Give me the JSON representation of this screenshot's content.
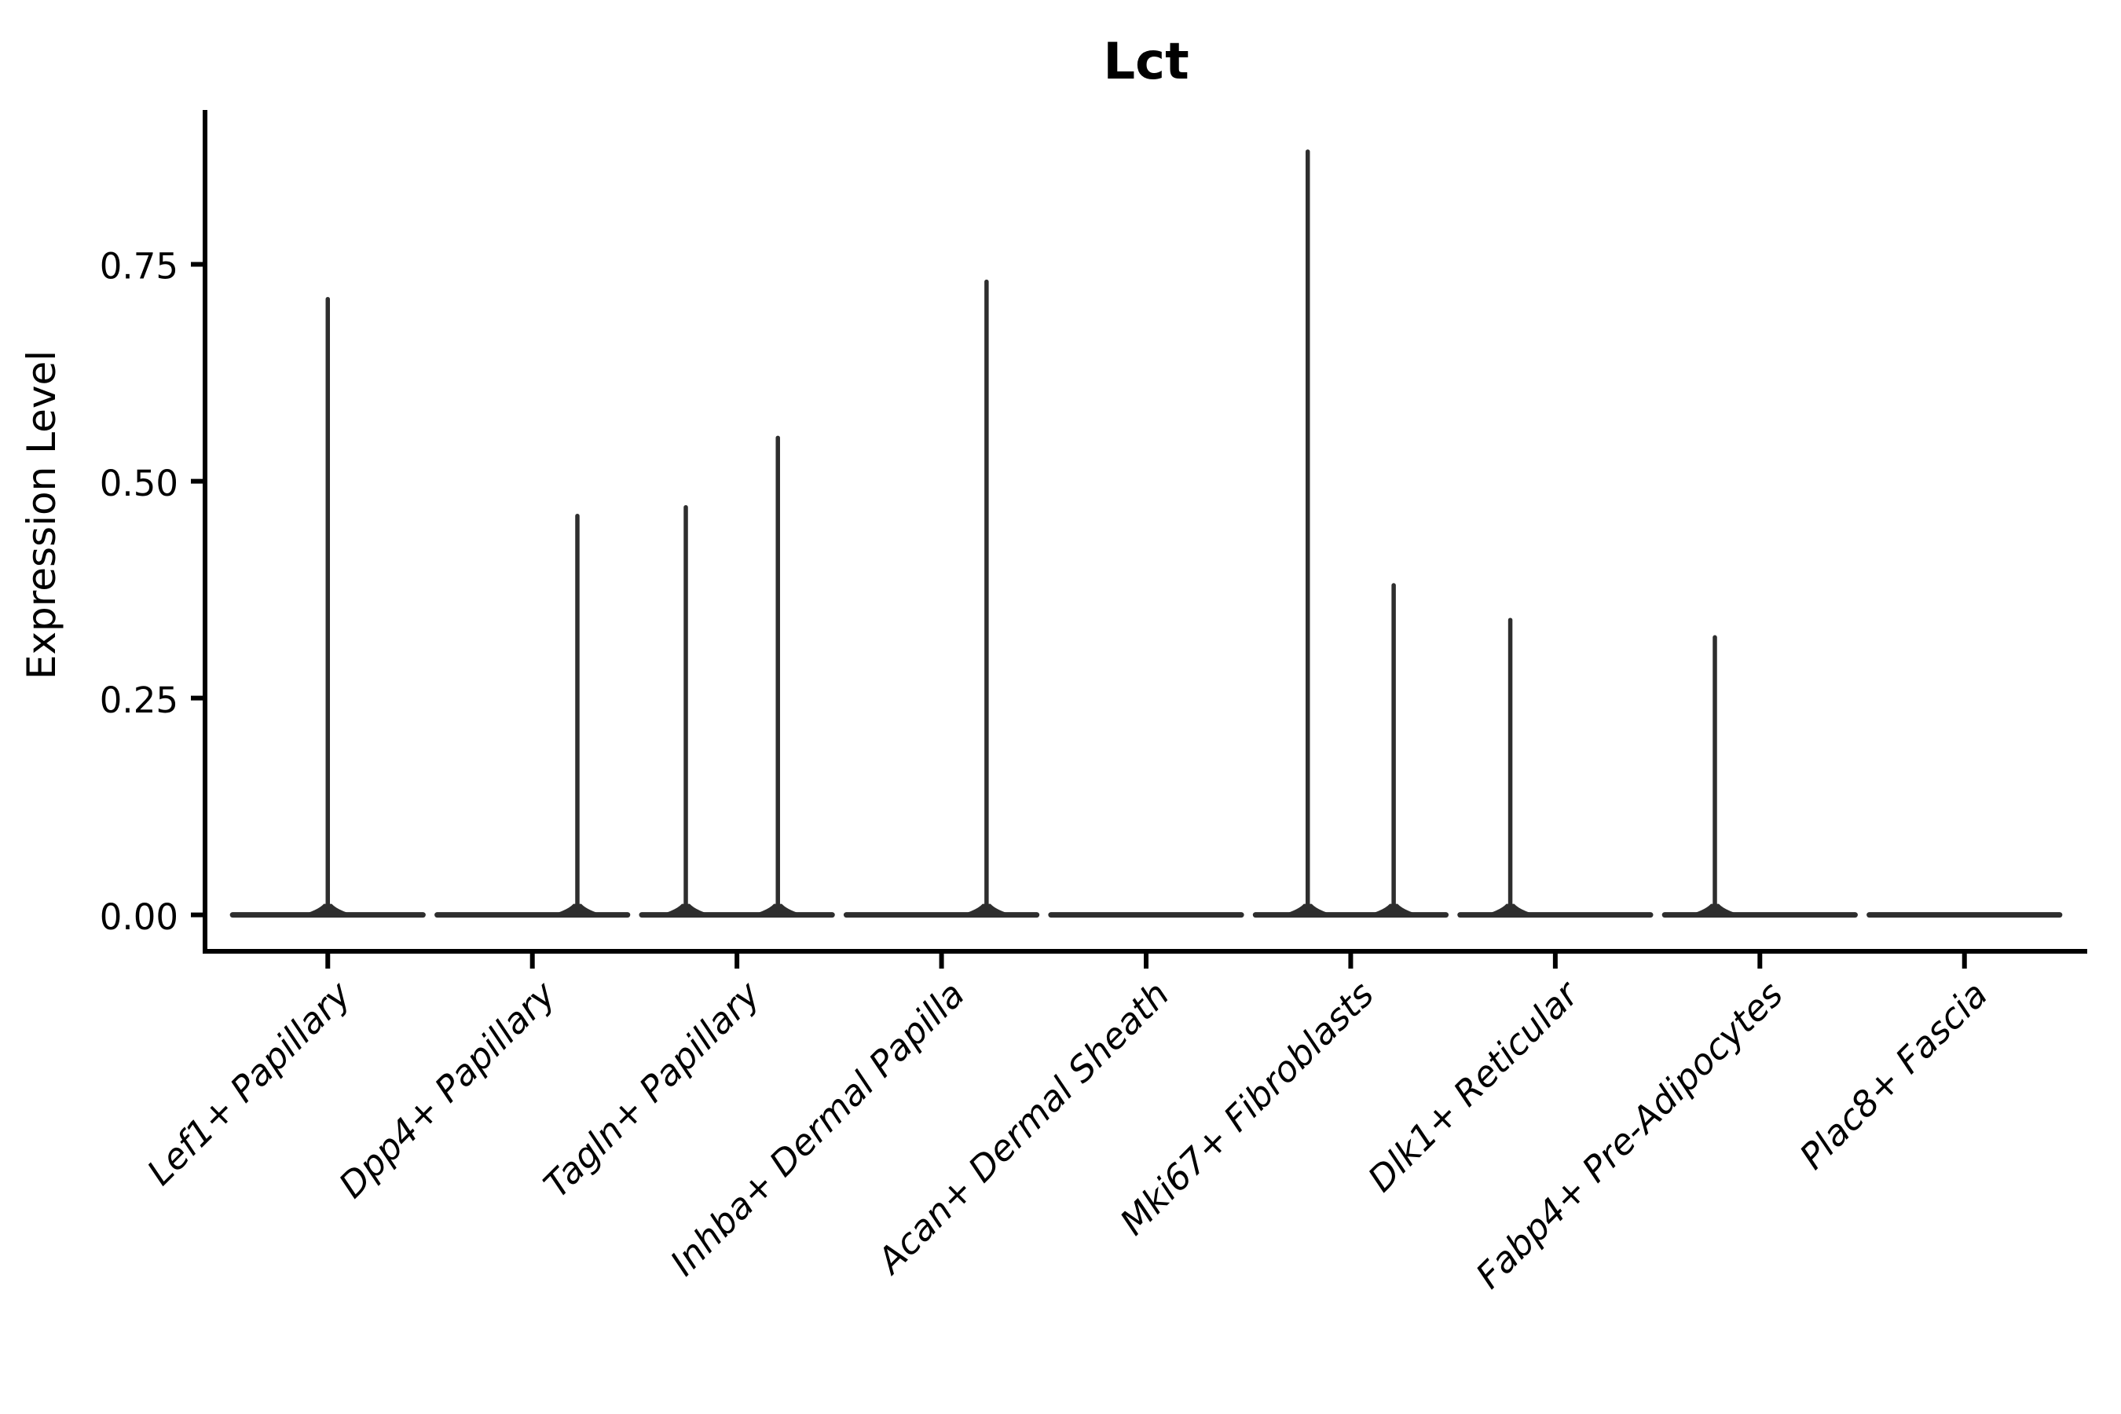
{
  "figure": {
    "title": "Lct"
  },
  "chart_data": {
    "type": "violin",
    "title": "Lct",
    "xlabel": "",
    "ylabel": "Expression Level",
    "ylim": [
      -0.042,
      0.928
    ],
    "yticks": [
      0,
      0.25,
      0.5,
      0.75
    ],
    "ytick_labels": [
      "0.00",
      "0.25",
      "0.50",
      "0.75"
    ],
    "grid": false,
    "legend": "none",
    "background": "#ffffff",
    "categories": [
      "Lef1+ Papillary",
      "Dpp4+ Papillary",
      "Tagln+ Papillary",
      "Inhba+ Dermal Papilla",
      "Acan+ Dermal Sheath",
      "Mki67+ Fibroblasts",
      "Dlk1+ Reticular",
      "Fabp4+ Pre-Adipocytes",
      "Plac8+ Fascia"
    ],
    "series": [
      {
        "category": "Lef1+ Papillary",
        "baseline_value": 0,
        "violin_width_frac": 0.93,
        "spikes": [
          {
            "offset_frac": 0.0,
            "max_value": 0.71
          }
        ]
      },
      {
        "category": "Dpp4+ Papillary",
        "baseline_value": 0,
        "violin_width_frac": 0.93,
        "spikes": [
          {
            "offset_frac": 0.22,
            "max_value": 0.46
          }
        ]
      },
      {
        "category": "Tagln+ Papillary",
        "baseline_value": 0,
        "violin_width_frac": 0.93,
        "spikes": [
          {
            "offset_frac": -0.25,
            "max_value": 0.47
          },
          {
            "offset_frac": 0.2,
            "max_value": 0.55
          }
        ]
      },
      {
        "category": "Inhba+ Dermal Papilla",
        "baseline_value": 0,
        "violin_width_frac": 0.93,
        "spikes": [
          {
            "offset_frac": 0.22,
            "max_value": 0.73
          }
        ]
      },
      {
        "category": "Acan+ Dermal Sheath",
        "baseline_value": 0,
        "violin_width_frac": 0.93,
        "spikes": []
      },
      {
        "category": "Mki67+ Fibroblasts",
        "baseline_value": 0,
        "violin_width_frac": 0.93,
        "spikes": [
          {
            "offset_frac": -0.21,
            "max_value": 0.88
          },
          {
            "offset_frac": 0.21,
            "max_value": 0.38
          }
        ]
      },
      {
        "category": "Dlk1+ Reticular",
        "baseline_value": 0,
        "violin_width_frac": 0.93,
        "spikes": [
          {
            "offset_frac": -0.22,
            "max_value": 0.34
          }
        ]
      },
      {
        "category": "Fabp4+ Pre-Adipocytes",
        "baseline_value": 0,
        "violin_width_frac": 0.93,
        "spikes": [
          {
            "offset_frac": -0.22,
            "max_value": 0.32
          }
        ]
      },
      {
        "category": "Plac8+ Fascia",
        "baseline_value": 0,
        "violin_width_frac": 0.93,
        "spikes": []
      }
    ],
    "colors": {
      "violin": "#2e2e2e",
      "axis": "#000000",
      "text": "#000000",
      "background": "#ffffff"
    }
  }
}
